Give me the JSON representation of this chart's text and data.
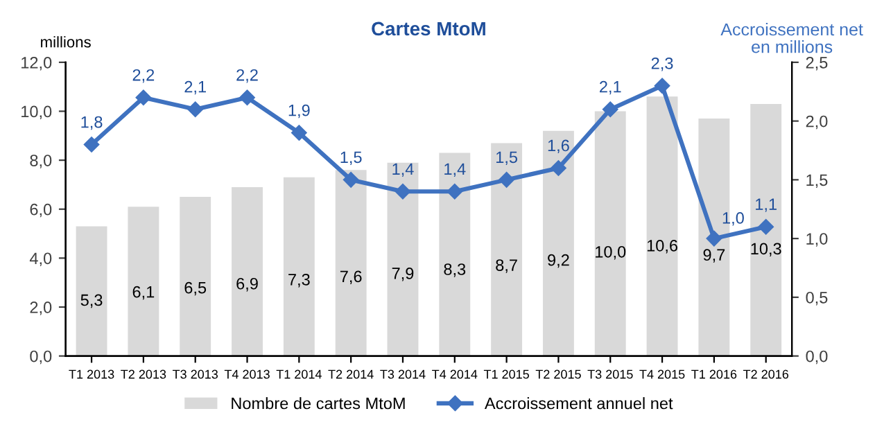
{
  "chart_data": {
    "type": "bar",
    "title": "Cartes MtoM",
    "ylabel": "millions",
    "y2label": "Accroissement net\nen millions",
    "categories": [
      "T1 2013",
      "T2 2013",
      "T3 2013",
      "T4 2013",
      "T1 2014",
      "T2 2014",
      "T3 2014",
      "T4 2014",
      "T1 2015",
      "T2 2015",
      "T3 2015",
      "T4 2015",
      "T1 2016",
      "T2 2016"
    ],
    "series": [
      {
        "name": "Nombre de cartes MtoM",
        "color": "#d9d9d9",
        "values": [
          5.3,
          6.1,
          6.5,
          6.9,
          7.3,
          7.6,
          7.9,
          8.3,
          8.7,
          9.2,
          10.0,
          10.6,
          9.7,
          10.3
        ],
        "value_labels": [
          "5,3",
          "6,1",
          "6,5",
          "6,9",
          "7,3",
          "7,6",
          "7,9",
          "8,3",
          "8,7",
          "9,2",
          "10,0",
          "10,6",
          "9,7",
          "10,3"
        ]
      },
      {
        "name": "Accroissement annuel net",
        "type": "line",
        "axis": "y2",
        "color": "#3f72c0",
        "marker": "diamond",
        "values": [
          1.8,
          2.2,
          2.1,
          2.2,
          1.9,
          1.5,
          1.4,
          1.4,
          1.5,
          1.6,
          2.1,
          2.3,
          1.0,
          1.1
        ],
        "value_labels": [
          "1,8",
          "2,2",
          "2,1",
          "2,2",
          "1,9",
          "1,5",
          "1,4",
          "1,4",
          "1,5",
          "1,6",
          "2,1",
          "2,3",
          "1,0",
          "1,1"
        ]
      }
    ],
    "ylim": [
      0,
      12
    ],
    "yticks": [
      {
        "value": 0,
        "label": "0,0"
      },
      {
        "value": 2,
        "label": "2,0"
      },
      {
        "value": 4,
        "label": "4,0"
      },
      {
        "value": 6,
        "label": "6,0"
      },
      {
        "value": 8,
        "label": "8,0"
      },
      {
        "value": 10,
        "label": "10,0"
      },
      {
        "value": 12,
        "label": "12,0"
      }
    ],
    "y2lim": [
      0,
      2.5
    ],
    "y2ticks": [
      {
        "value": 0,
        "label": "0,0"
      },
      {
        "value": 0.5,
        "label": "0,5"
      },
      {
        "value": 1,
        "label": "1,0"
      },
      {
        "value": 1.5,
        "label": "1,5"
      },
      {
        "value": 2,
        "label": "2,0"
      },
      {
        "value": 2.5,
        "label": "2,5"
      }
    ],
    "grid": false,
    "legend": "bottom"
  }
}
